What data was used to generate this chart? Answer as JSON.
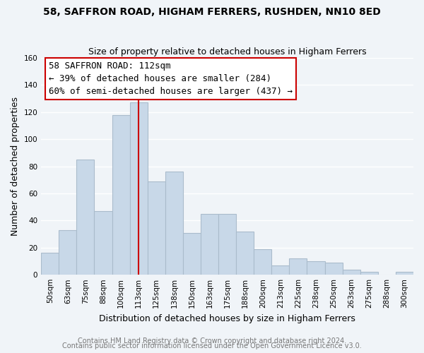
{
  "title": "58, SAFFRON ROAD, HIGHAM FERRERS, RUSHDEN, NN10 8ED",
  "subtitle": "Size of property relative to detached houses in Higham Ferrers",
  "xlabel": "Distribution of detached houses by size in Higham Ferrers",
  "ylabel": "Number of detached properties",
  "footer1": "Contains HM Land Registry data © Crown copyright and database right 2024.",
  "footer2": "Contains public sector information licensed under the Open Government Licence v3.0.",
  "bar_labels": [
    "50sqm",
    "63sqm",
    "75sqm",
    "88sqm",
    "100sqm",
    "113sqm",
    "125sqm",
    "138sqm",
    "150sqm",
    "163sqm",
    "175sqm",
    "188sqm",
    "200sqm",
    "213sqm",
    "225sqm",
    "238sqm",
    "250sqm",
    "263sqm",
    "275sqm",
    "288sqm",
    "300sqm"
  ],
  "bar_values": [
    16,
    33,
    85,
    47,
    118,
    127,
    69,
    76,
    31,
    45,
    45,
    32,
    19,
    7,
    12,
    10,
    9,
    4,
    2,
    0,
    2
  ],
  "bar_color": "#c8d8e8",
  "bar_edge_color": "#aabccc",
  "vline_index": 5,
  "vline_color": "#cc0000",
  "ylim": [
    0,
    160
  ],
  "yticks": [
    0,
    20,
    40,
    60,
    80,
    100,
    120,
    140,
    160
  ],
  "annotation_title": "58 SAFFRON ROAD: 112sqm",
  "annotation_line1": "← 39% of detached houses are smaller (284)",
  "annotation_line2": "60% of semi-detached houses are larger (437) →",
  "annotation_box_facecolor": "#ffffff",
  "annotation_box_edgecolor": "#cc0000",
  "bg_color": "#f0f4f8",
  "grid_color": "#ffffff",
  "title_fontsize": 10,
  "subtitle_fontsize": 9,
  "annotation_fontsize": 9,
  "tick_fontsize": 7.5,
  "ylabel_fontsize": 9,
  "xlabel_fontsize": 9,
  "footer_fontsize": 7,
  "footer_color": "#777777"
}
